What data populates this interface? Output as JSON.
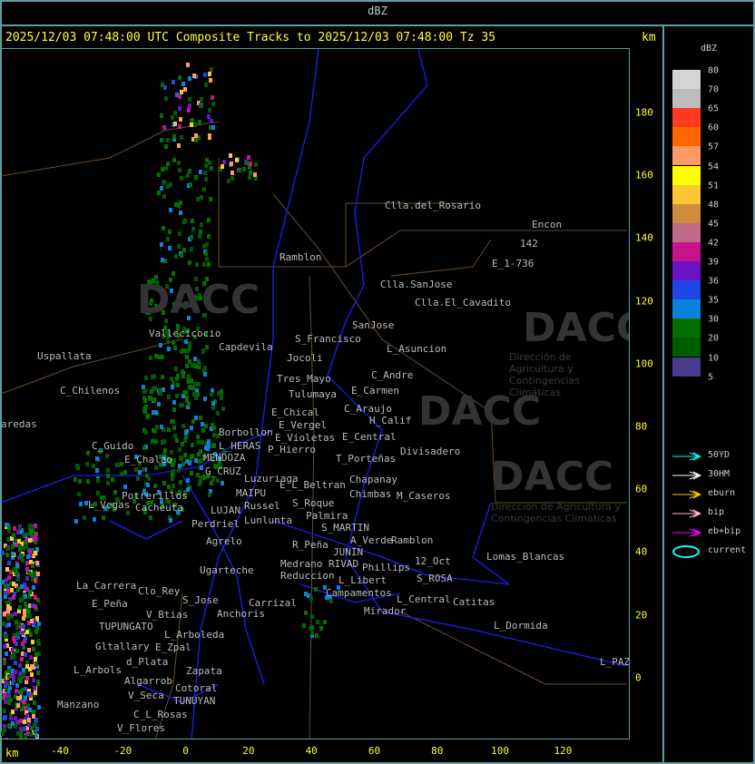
{
  "header": {
    "title": "dBZ",
    "main_title": "2025/12/03 07:48:00 UTC Composite Tracks to 2025/12/03 07:48:00 Tz 35",
    "unit_top": "km",
    "unit_bottom": "km"
  },
  "axes": {
    "x_ticks": [
      "-40",
      "-20",
      "0",
      "20",
      "40",
      "60",
      "80",
      "100",
      "120"
    ],
    "y_ticks": [
      "180",
      "160",
      "140",
      "120",
      "100",
      "80",
      "60",
      "40",
      "20",
      "0"
    ]
  },
  "watermark": {
    "logo": "DACC",
    "subtitle": "Dirección de Agricultura y Contingencias Climáticas"
  },
  "legend": {
    "title": "dBZ",
    "levels": [
      "80",
      "70",
      "65",
      "60",
      "57",
      "54",
      "51",
      "48",
      "45",
      "42",
      "39",
      "36",
      "35",
      "30",
      "20",
      "10",
      "5"
    ],
    "colors": [
      "#d4d4d4",
      "#bdbdbd",
      "#ff3a1f",
      "#ff6600",
      "#ff9966",
      "#ffff00",
      "#fcc634",
      "#d08c3e",
      "#c06a8a",
      "#c8148a",
      "#6a14c8",
      "#1e46e6",
      "#0a82dc",
      "#007000",
      "#005a00",
      "#463c8c"
    ],
    "tracks": [
      {
        "label": "50YD",
        "color": "#00ffff"
      },
      {
        "label": "30HM",
        "color": "#ffffff"
      },
      {
        "label": "eburn",
        "color": "#ffcc00"
      },
      {
        "label": "bip",
        "color": "#ffc0cb"
      },
      {
        "label": "eb+bip",
        "color": "#ff00ff"
      },
      {
        "label": "current",
        "color": "#00ffff",
        "icon": "ellipse"
      }
    ]
  },
  "places": [
    "Clla.del_Rosario",
    "Ramblon",
    "Encon",
    "142",
    "E_1-736",
    "Clla.SanJose",
    "Clla.El_Cavadito",
    "S_Francisco",
    "SanJose",
    "Vallecicocio",
    "Uspallata",
    "Capdevila",
    "L_Asuncion",
    "Tres_Mayo",
    "Jocoli",
    "C_Andre",
    "E_Carmen",
    "C_Chilenos",
    "Tulumaya",
    "C_Araujo",
    "E_Chical",
    "H_Calif",
    "E_Vergel",
    "aredas",
    "Borbollon",
    "E_Violetas",
    "E_Central",
    "Divisadero",
    "P_Hierro",
    "C_Guido",
    "L_HERAS",
    "MENDOZA",
    "E_Chalao",
    "T_Porteñas",
    "G_CRUZ",
    "Luzuriaga",
    "Chapanay",
    "E_L_Beltran",
    "MAIPU",
    "Chimbas",
    "M_Caseros",
    "Potrerillos",
    "Russel",
    "L_Vegas",
    "Cacheuta",
    "S_Roque",
    "LUJAN",
    "Lunlunta",
    "Palmira",
    "Perdriel",
    "S_MARTIN",
    "A_Verde",
    "Ramblon",
    "Agrelo",
    "R_Peña",
    "JUNIN",
    "Lomas_Blancas",
    "12_Oct",
    "Medrano",
    "RIVAD",
    "Phillips",
    "Ugarteche",
    "Reduccion",
    "S_ROSA",
    "L_Libert",
    "Clo_Rey",
    "La_Carrera",
    "Campamentos",
    "L_Central",
    "S_Jose",
    "Carrizal",
    "Catitas",
    "Mirador",
    "V_Btias",
    "Anchoris",
    "E_Peña",
    "TUPUNGATO",
    "L_Dormida",
    "L_Arboleda",
    "Gltallary",
    "E_Zpal",
    "d_Plata",
    "L_Arbols",
    "Zapata",
    "Algarrob",
    "L_PAZ",
    "V_Seca",
    "Cotoral",
    "Manzano",
    "C_L_Rosas",
    "TUNUYAN",
    "V_Flores"
  ]
}
